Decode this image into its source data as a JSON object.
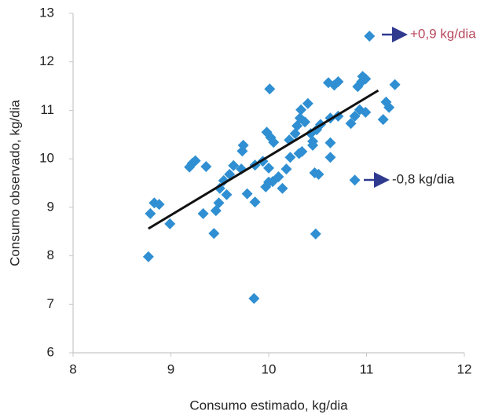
{
  "chart_data": {
    "type": "scatter",
    "x_label": "Consumo estimado, kg/dia",
    "y_label": "Consumo observado, kg/dia",
    "xlim": [
      8,
      12
    ],
    "xticks": [
      8,
      9,
      10,
      11,
      12
    ],
    "ylim": [
      6,
      13
    ],
    "yticks": [
      6,
      7,
      8,
      9,
      10,
      11,
      12,
      13
    ],
    "color": "#2f8fd2",
    "x": [
      8.77,
      8.79,
      8.83,
      8.88,
      8.99,
      9.19,
      9.22,
      9.25,
      9.36,
      9.33,
      9.44,
      9.46,
      9.49,
      9.5,
      9.54,
      9.6,
      9.57,
      9.64,
      9.73,
      9.74,
      9.72,
      9.78,
      9.86,
      9.86,
      9.85,
      9.94,
      10.01,
      9.97,
      10.0,
      10.04,
      9.98,
      10.02,
      10.05,
      10.0,
      10.1,
      10.14,
      10.18,
      10.22,
      10.21,
      10.27,
      10.29,
      10.33,
      10.32,
      10.37,
      10.4,
      10.34,
      10.31,
      10.43,
      10.45,
      10.45,
      10.49,
      10.47,
      10.51,
      10.48,
      10.53,
      10.61,
      10.63,
      10.63,
      10.63,
      10.67,
      10.71,
      10.71,
      10.84,
      10.88,
      10.88,
      10.93,
      10.91,
      10.96,
      10.99,
      10.99,
      11.03,
      11.17,
      11.23,
      11.2,
      11.29,
      10.95
    ],
    "values": [
      7.98,
      8.87,
      9.09,
      9.06,
      8.66,
      9.83,
      9.91,
      9.96,
      9.84,
      8.87,
      8.46,
      8.93,
      9.09,
      9.39,
      9.55,
      9.68,
      9.26,
      9.86,
      10.16,
      10.28,
      9.79,
      9.28,
      9.11,
      9.87,
      7.12,
      9.95,
      11.44,
      9.42,
      9.52,
      9.53,
      10.55,
      10.44,
      10.34,
      9.81,
      9.63,
      9.39,
      9.79,
      10.03,
      10.39,
      10.52,
      10.68,
      11.01,
      10.84,
      10.76,
      11.14,
      10.15,
      10.11,
      10.52,
      10.36,
      10.28,
      10.6,
      9.71,
      9.68,
      8.45,
      10.71,
      11.57,
      10.84,
      10.03,
      10.33,
      11.52,
      11.59,
      10.88,
      10.73,
      10.88,
      9.56,
      11.01,
      11.49,
      11.7,
      11.65,
      10.96,
      12.53,
      10.81,
      11.06,
      11.17,
      11.53,
      11.59
    ],
    "trendline": {
      "x": [
        8.77,
        11.12
      ],
      "values": [
        8.56,
        11.41
      ],
      "color": "#111111"
    },
    "annotations": [
      {
        "text": "+0,9 kg/dia",
        "color": "#b84a5e",
        "arrow_color": "#2f3a8f"
      },
      {
        "text": "-0,8 kg/dia",
        "color": "#222222",
        "arrow_color": "#2f3a8f"
      }
    ]
  }
}
